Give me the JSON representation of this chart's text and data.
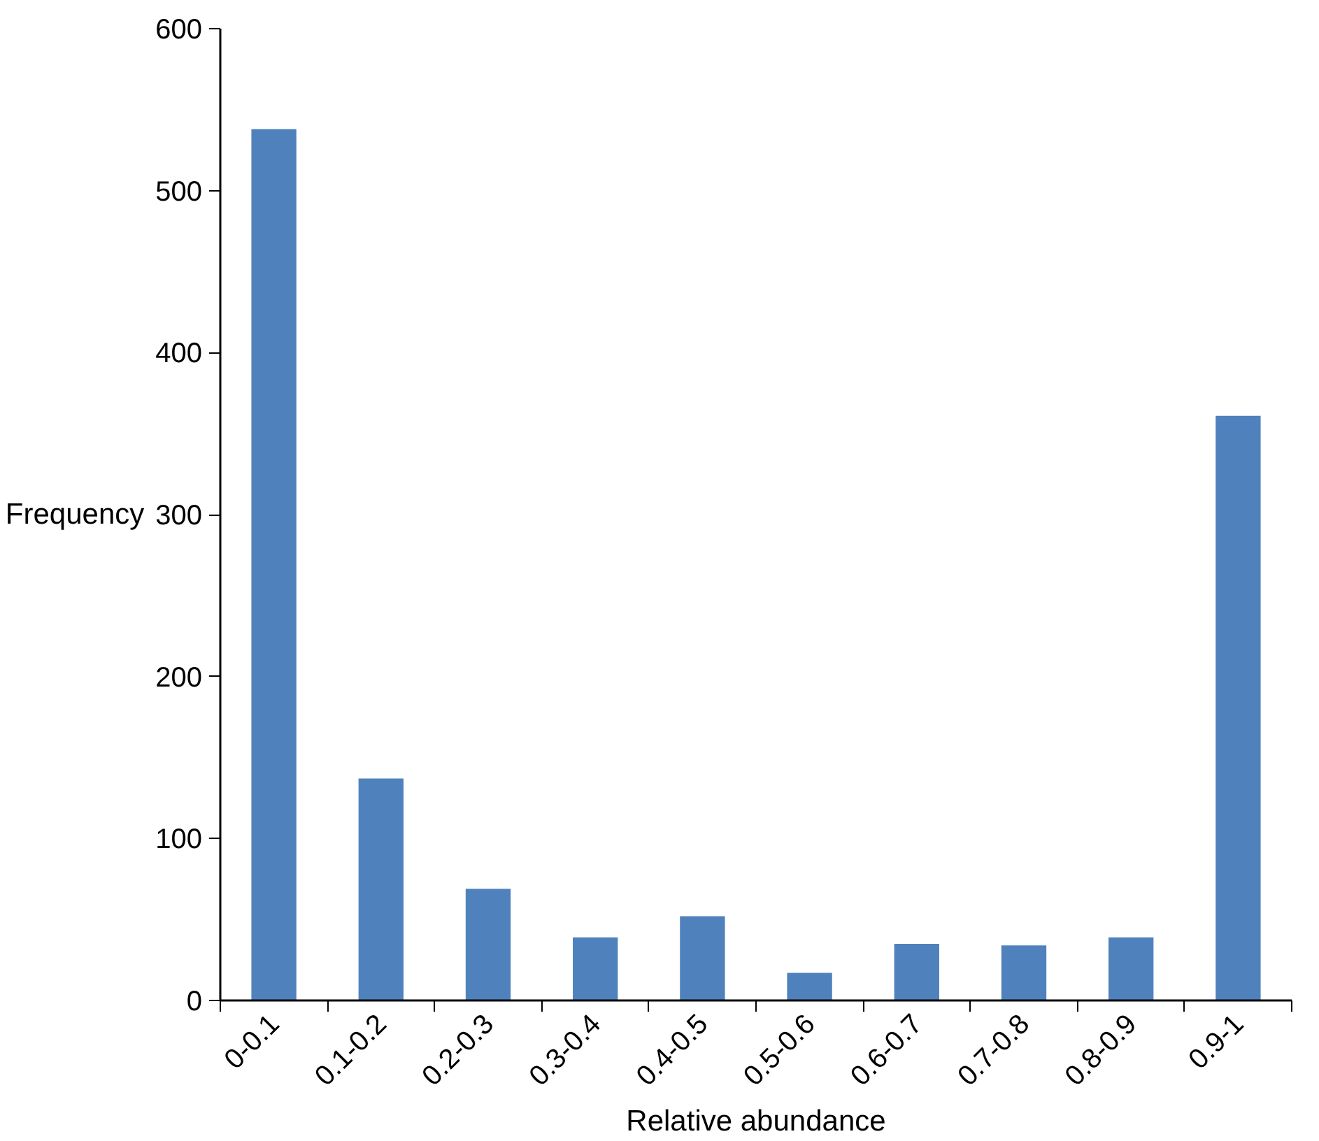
{
  "chart_data": {
    "type": "bar",
    "xlabel": "Relative abundance",
    "ylabel": "Frequency",
    "categories": [
      "0-0.1",
      "0.1-0.2",
      "0.2-0.3",
      "0.3-0.4",
      "0.4-0.5",
      "0.5-0.6",
      "0.6-0.7",
      "0.7-0.8",
      "0.8-0.9",
      "0.9-1"
    ],
    "values": [
      538,
      137,
      69,
      39,
      52,
      17,
      35,
      34,
      39,
      361
    ],
    "color": "#4f81bd",
    "ylim": [
      0,
      600
    ],
    "yticks": [
      0,
      100,
      200,
      300,
      400,
      500,
      600
    ],
    "grid": false
  }
}
